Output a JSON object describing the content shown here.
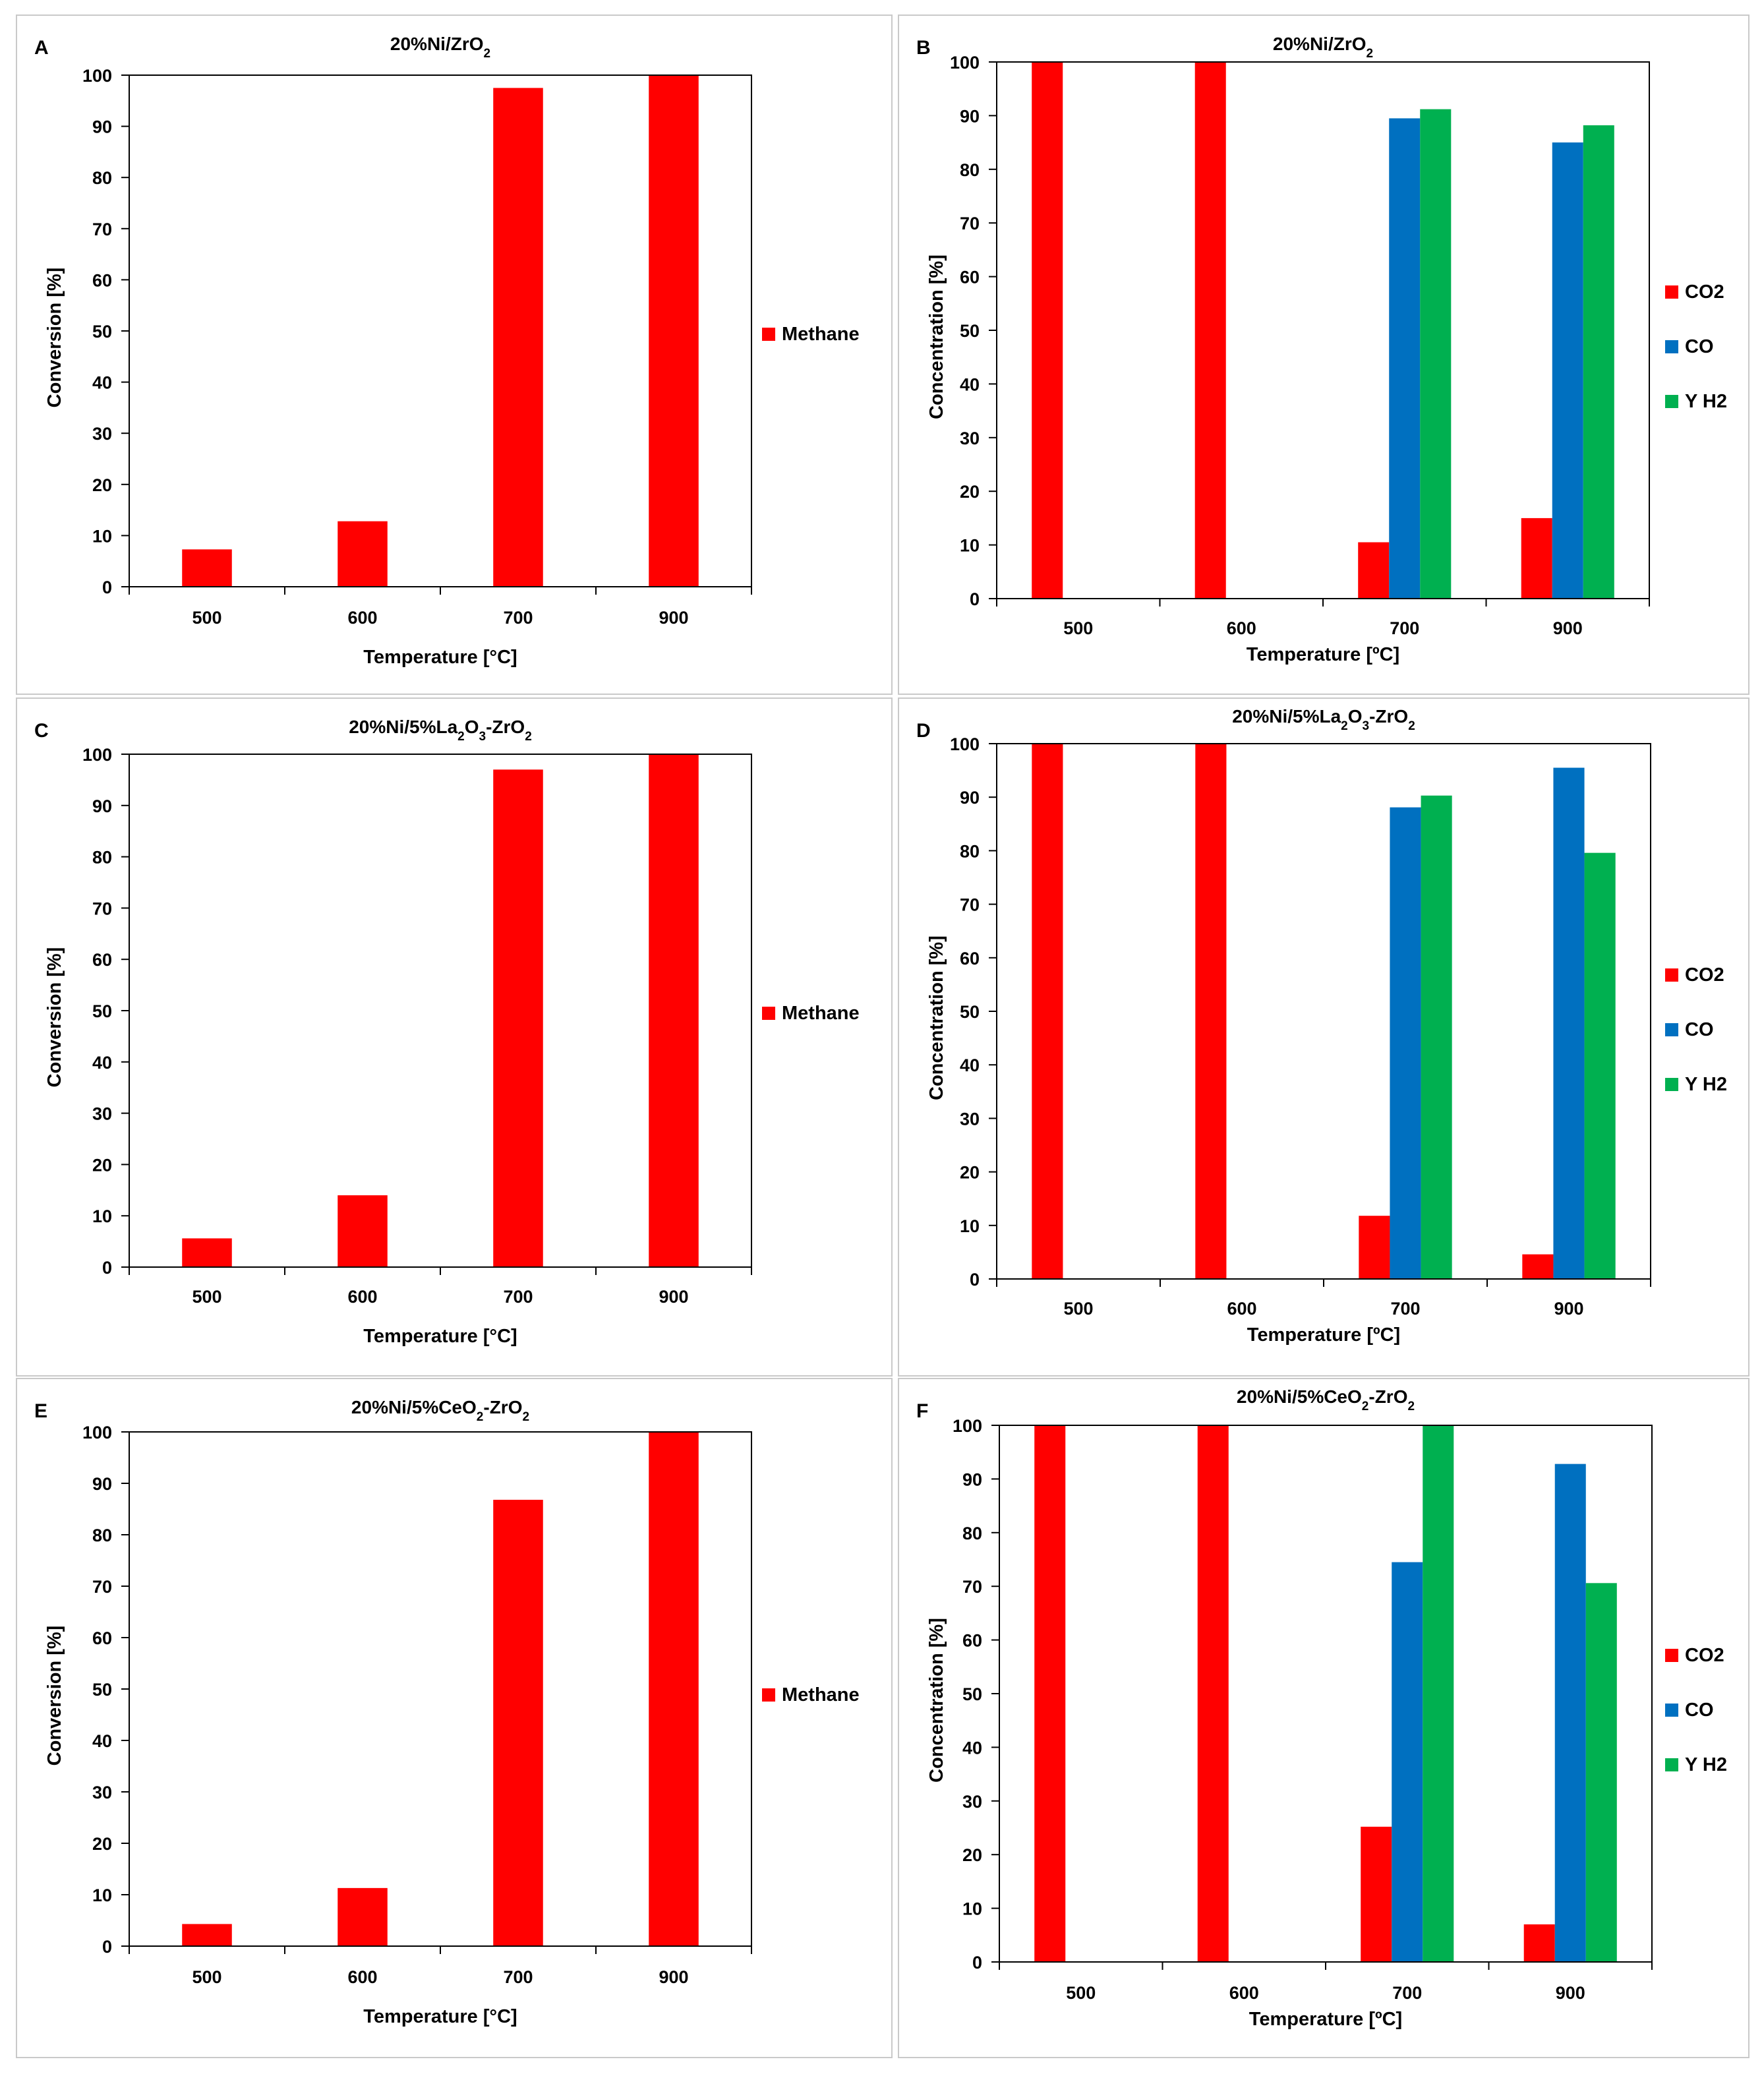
{
  "colors": {
    "co2": "#ff0000",
    "co": "#0070c0",
    "h2": "#00b050",
    "axis": "#000000"
  },
  "chart_data": [
    {
      "id": "A",
      "type": "bar",
      "label": "A",
      "title": [
        {
          "t": "20%Ni/ZrO"
        },
        {
          "t": "2",
          "sub": true
        }
      ],
      "xlabel": "Temperature [°C]",
      "ylabel": "Conversion [%]",
      "categories": [
        "500",
        "600",
        "700",
        "900"
      ],
      "ylim": [
        0,
        100
      ],
      "yticks": [
        "0",
        "10",
        "20",
        "30",
        "40",
        "50",
        "60",
        "70",
        "80",
        "90",
        "100"
      ],
      "series": [
        {
          "name": "Methane",
          "color": "#ff0000",
          "values": [
            7.3,
            12.8,
            97.5,
            100
          ]
        }
      ]
    },
    {
      "id": "B",
      "type": "bar",
      "label": "B",
      "title": [
        {
          "t": "20%Ni/ZrO"
        },
        {
          "t": "2",
          "sub": true
        }
      ],
      "xlabel": "Temperature [ºC]",
      "ylabel": "Concentration [%]",
      "categories": [
        "500",
        "600",
        "700",
        "900"
      ],
      "ylim": [
        0,
        100
      ],
      "yticks": [
        "0",
        "10",
        "20",
        "30",
        "40",
        "50",
        "60",
        "70",
        "80",
        "90",
        "100"
      ],
      "series": [
        {
          "name": "CO2",
          "color": "#ff0000",
          "values": [
            100,
            100,
            10.5,
            15
          ]
        },
        {
          "name": "CO",
          "color": "#0070c0",
          "values": [
            0,
            0,
            89.5,
            85
          ]
        },
        {
          "name": "Y H2",
          "color": "#00b050",
          "values": [
            0,
            0,
            91.2,
            88.2
          ]
        }
      ]
    },
    {
      "id": "C",
      "type": "bar",
      "label": "C",
      "title": [
        {
          "t": "20%Ni/5%La"
        },
        {
          "t": "2",
          "sub": true
        },
        {
          "t": "O"
        },
        {
          "t": "3",
          "sub": true
        },
        {
          "t": "-ZrO"
        },
        {
          "t": "2",
          "sub": true
        }
      ],
      "xlabel": "Temperature [°C]",
      "ylabel": "Conversion [%]",
      "categories": [
        "500",
        "600",
        "700",
        "900"
      ],
      "ylim": [
        0,
        100
      ],
      "yticks": [
        "0",
        "10",
        "20",
        "30",
        "40",
        "50",
        "60",
        "70",
        "80",
        "90",
        "100"
      ],
      "series": [
        {
          "name": "Methane",
          "color": "#ff0000",
          "values": [
            5.6,
            14,
            97,
            100
          ]
        }
      ]
    },
    {
      "id": "D",
      "type": "bar",
      "label": "D",
      "title": [
        {
          "t": "20%Ni/5%La"
        },
        {
          "t": "2",
          "sub": true
        },
        {
          "t": "O"
        },
        {
          "t": "3",
          "sub": true
        },
        {
          "t": "-ZrO"
        },
        {
          "t": "2",
          "sub": true
        }
      ],
      "xlabel": "Temperature [ºC]",
      "ylabel": "Concentration [%]",
      "categories": [
        "500",
        "600",
        "700",
        "900"
      ],
      "ylim": [
        0,
        100
      ],
      "yticks": [
        "0",
        "10",
        "20",
        "30",
        "40",
        "50",
        "60",
        "70",
        "80",
        "90",
        "100"
      ],
      "series": [
        {
          "name": "CO2",
          "color": "#ff0000",
          "values": [
            100,
            100,
            11.8,
            4.6
          ]
        },
        {
          "name": "CO",
          "color": "#0070c0",
          "values": [
            0,
            0,
            88.1,
            95.5
          ]
        },
        {
          "name": "Y H2",
          "color": "#00b050",
          "values": [
            0,
            0,
            90.3,
            79.6
          ]
        }
      ]
    },
    {
      "id": "E",
      "type": "bar",
      "label": "E",
      "title": [
        {
          "t": "20%Ni/5%CeO"
        },
        {
          "t": "2",
          "sub": true
        },
        {
          "t": "-ZrO"
        },
        {
          "t": "2",
          "sub": true
        }
      ],
      "xlabel": "Temperature [°C]",
      "ylabel": "Conversion [%]",
      "categories": [
        "500",
        "600",
        "700",
        "900"
      ],
      "ylim": [
        0,
        100
      ],
      "yticks": [
        "0",
        "10",
        "20",
        "30",
        "40",
        "50",
        "60",
        "70",
        "80",
        "90",
        "100"
      ],
      "series": [
        {
          "name": "Methane",
          "color": "#ff0000",
          "values": [
            4.3,
            11.3,
            86.8,
            100
          ]
        }
      ]
    },
    {
      "id": "F",
      "type": "bar",
      "label": "F",
      "title": [
        {
          "t": "20%Ni/5%CeO"
        },
        {
          "t": "2",
          "sub": true
        },
        {
          "t": "-ZrO"
        },
        {
          "t": "2",
          "sub": true
        }
      ],
      "xlabel": "Temperature [ºC]",
      "ylabel": "Concentration [%]",
      "categories": [
        "500",
        "600",
        "700",
        "900"
      ],
      "ylim": [
        0,
        100
      ],
      "yticks": [
        "0",
        "10",
        "20",
        "30",
        "40",
        "50",
        "60",
        "70",
        "80",
        "90",
        "100"
      ],
      "series": [
        {
          "name": "CO2",
          "color": "#ff0000",
          "values": [
            100,
            100,
            25.2,
            7
          ]
        },
        {
          "name": "CO",
          "color": "#0070c0",
          "values": [
            0,
            0,
            74.5,
            92.8
          ]
        },
        {
          "name": "Y H2",
          "color": "#00b050",
          "values": [
            0,
            0,
            100,
            70.6
          ]
        }
      ]
    }
  ]
}
